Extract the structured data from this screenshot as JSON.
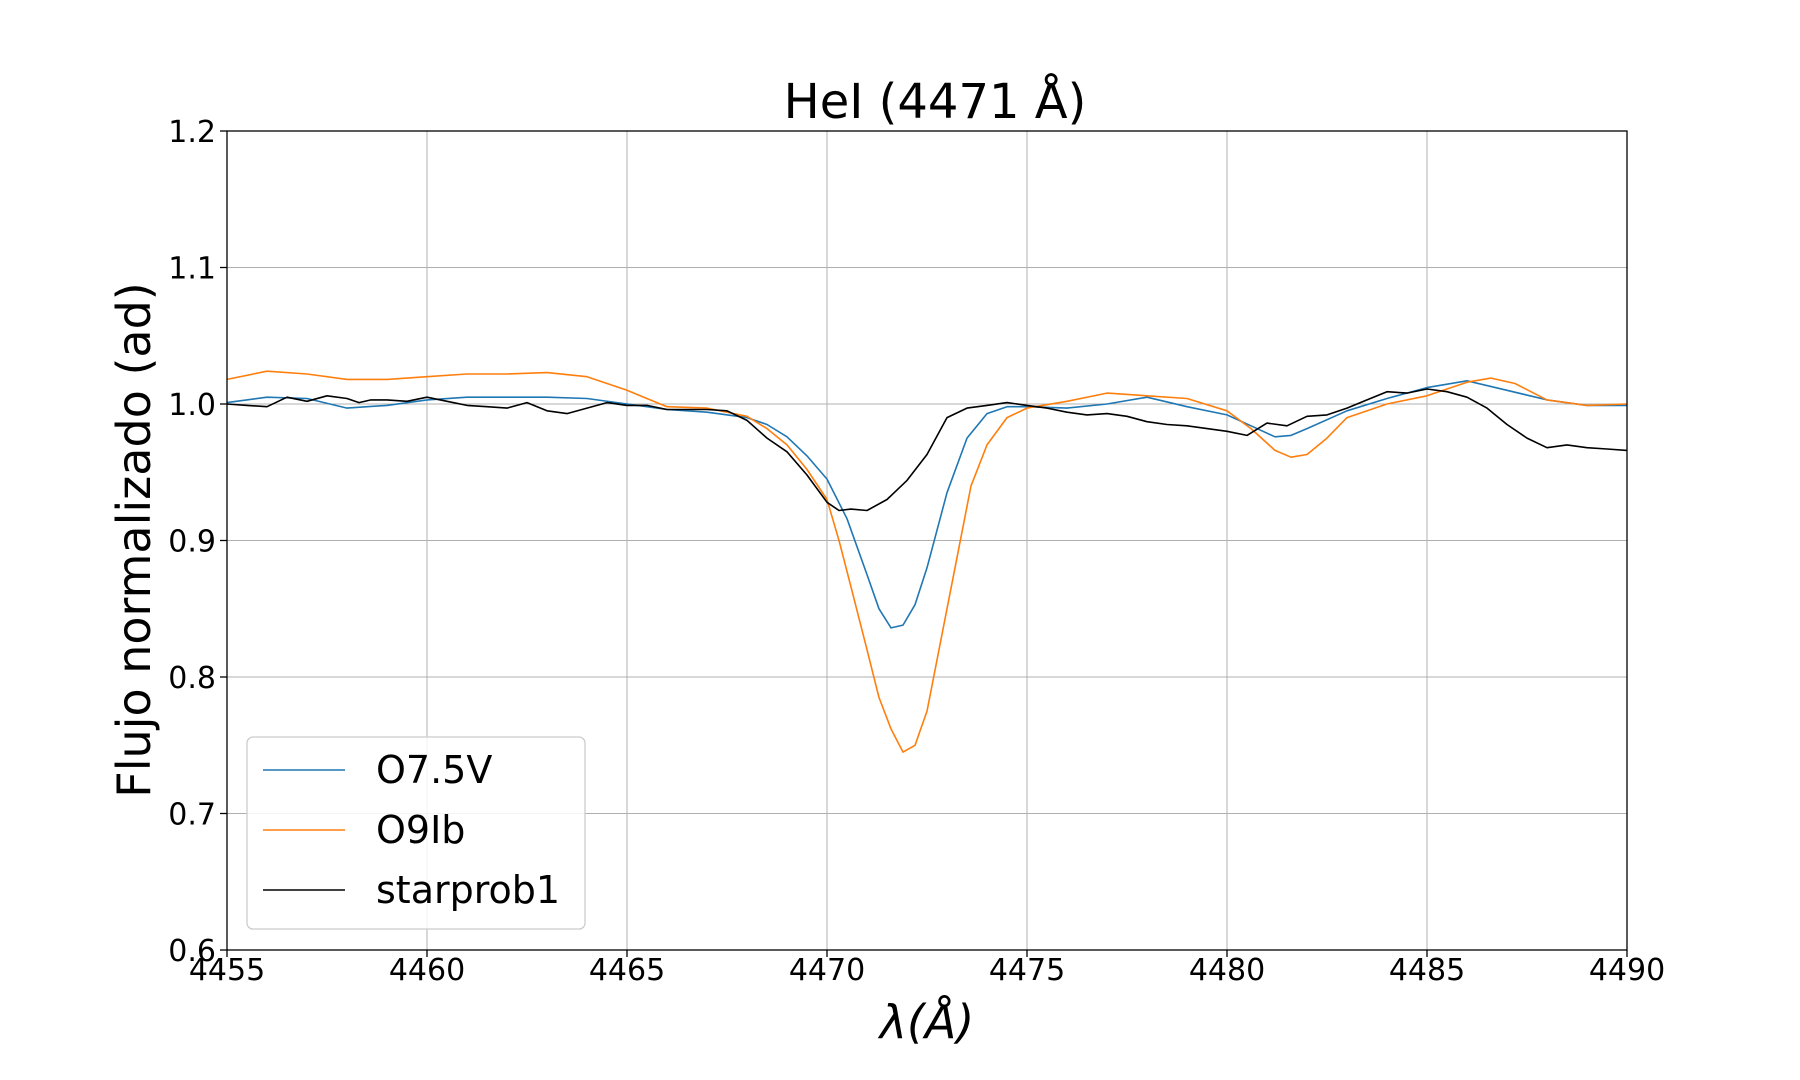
{
  "chart_data": {
    "type": "line",
    "title": "HeI (4471 Å)",
    "xlabel": "λ(Å)",
    "ylabel": "Flujo normalizado (ad)",
    "xlim": [
      4455,
      4490
    ],
    "ylim": [
      0.6,
      1.2
    ],
    "xticks": [
      4455,
      4460,
      4465,
      4470,
      4475,
      4480,
      4485,
      4490
    ],
    "xtick_labels": [
      "4455",
      "4460",
      "4465",
      "4470",
      "4475",
      "4480",
      "4485",
      "4490"
    ],
    "yticks": [
      0.6,
      0.7,
      0.8,
      0.9,
      1.0,
      1.1,
      1.2
    ],
    "ytick_labels": [
      "0.6",
      "0.7",
      "0.8",
      "0.9",
      "1.0",
      "1.1",
      "1.2"
    ],
    "grid": true,
    "legend_position": "lower-left",
    "series": [
      {
        "name": "O7.5V",
        "color": "#1f77b4",
        "points": [
          [
            4455,
            1.001
          ],
          [
            4456,
            1.005
          ],
          [
            4457,
            1.004
          ],
          [
            4458,
            0.997
          ],
          [
            4459,
            0.999
          ],
          [
            4460,
            1.003
          ],
          [
            4461,
            1.005
          ],
          [
            4462,
            1.005
          ],
          [
            4463,
            1.005
          ],
          [
            4464,
            1.004
          ],
          [
            4465,
            1.0
          ],
          [
            4466,
            0.996
          ],
          [
            4467,
            0.994
          ],
          [
            4468,
            0.99
          ],
          [
            4468.5,
            0.985
          ],
          [
            4469,
            0.976
          ],
          [
            4469.5,
            0.962
          ],
          [
            4470,
            0.945
          ],
          [
            4470.5,
            0.916
          ],
          [
            4471,
            0.875
          ],
          [
            4471.3,
            0.85
          ],
          [
            4471.6,
            0.836
          ],
          [
            4471.9,
            0.838
          ],
          [
            4472.2,
            0.853
          ],
          [
            4472.5,
            0.88
          ],
          [
            4473,
            0.935
          ],
          [
            4473.5,
            0.975
          ],
          [
            4474,
            0.993
          ],
          [
            4474.5,
            0.998
          ],
          [
            4475,
            0.998
          ],
          [
            4476,
            0.997
          ],
          [
            4477,
            1.0
          ],
          [
            4478,
            1.005
          ],
          [
            4479,
            0.998
          ],
          [
            4480,
            0.992
          ],
          [
            4480.6,
            0.984
          ],
          [
            4481.2,
            0.976
          ],
          [
            4481.6,
            0.977
          ],
          [
            4482,
            0.982
          ],
          [
            4483,
            0.995
          ],
          [
            4484,
            1.004
          ],
          [
            4485,
            1.012
          ],
          [
            4486,
            1.017
          ],
          [
            4487,
            1.01
          ],
          [
            4488,
            1.003
          ],
          [
            4489,
            0.999
          ],
          [
            4490,
            0.999
          ]
        ]
      },
      {
        "name": "O9Ib",
        "color": "#ff7f0e",
        "points": [
          [
            4455,
            1.018
          ],
          [
            4456,
            1.024
          ],
          [
            4457,
            1.022
          ],
          [
            4458,
            1.018
          ],
          [
            4459,
            1.018
          ],
          [
            4460,
            1.02
          ],
          [
            4461,
            1.022
          ],
          [
            4462,
            1.022
          ],
          [
            4463,
            1.023
          ],
          [
            4464,
            1.02
          ],
          [
            4465,
            1.01
          ],
          [
            4466,
            0.998
          ],
          [
            4467,
            0.997
          ],
          [
            4468,
            0.991
          ],
          [
            4468.5,
            0.982
          ],
          [
            4469,
            0.97
          ],
          [
            4469.5,
            0.952
          ],
          [
            4470,
            0.93
          ],
          [
            4470.3,
            0.9
          ],
          [
            4470.6,
            0.866
          ],
          [
            4471,
            0.82
          ],
          [
            4471.3,
            0.785
          ],
          [
            4471.6,
            0.762
          ],
          [
            4471.9,
            0.745
          ],
          [
            4472.2,
            0.75
          ],
          [
            4472.5,
            0.775
          ],
          [
            4472.8,
            0.82
          ],
          [
            4473.2,
            0.88
          ],
          [
            4473.6,
            0.94
          ],
          [
            4474,
            0.97
          ],
          [
            4474.5,
            0.99
          ],
          [
            4475,
            0.997
          ],
          [
            4476,
            1.002
          ],
          [
            4477,
            1.008
          ],
          [
            4478,
            1.006
          ],
          [
            4479,
            1.004
          ],
          [
            4480,
            0.995
          ],
          [
            4480.6,
            0.982
          ],
          [
            4481.2,
            0.966
          ],
          [
            4481.6,
            0.961
          ],
          [
            4482,
            0.963
          ],
          [
            4482.5,
            0.975
          ],
          [
            4483,
            0.99
          ],
          [
            4484,
            1.0
          ],
          [
            4485,
            1.006
          ],
          [
            4486,
            1.016
          ],
          [
            4486.6,
            1.019
          ],
          [
            4487.2,
            1.015
          ],
          [
            4488,
            1.003
          ],
          [
            4489,
            0.999
          ],
          [
            4490,
            1.0
          ]
        ]
      },
      {
        "name": "starprob1",
        "color": "#000000",
        "points": [
          [
            4455,
            1.0
          ],
          [
            4455.5,
            0.999
          ],
          [
            4456,
            0.998
          ],
          [
            4456.5,
            1.005
          ],
          [
            4457,
            1.002
          ],
          [
            4457.5,
            1.006
          ],
          [
            4458,
            1.004
          ],
          [
            4458.3,
            1.001
          ],
          [
            4458.6,
            1.003
          ],
          [
            4459,
            1.003
          ],
          [
            4459.5,
            1.002
          ],
          [
            4460,
            1.005
          ],
          [
            4460.5,
            1.002
          ],
          [
            4461,
            0.999
          ],
          [
            4461.5,
            0.998
          ],
          [
            4462,
            0.997
          ],
          [
            4462.5,
            1.001
          ],
          [
            4463,
            0.995
          ],
          [
            4463.5,
            0.993
          ],
          [
            4464,
            0.997
          ],
          [
            4464.5,
            1.001
          ],
          [
            4465,
            0.999
          ],
          [
            4465.5,
            0.999
          ],
          [
            4466,
            0.996
          ],
          [
            4466.5,
            0.996
          ],
          [
            4467,
            0.996
          ],
          [
            4467.5,
            0.995
          ],
          [
            4468,
            0.988
          ],
          [
            4468.5,
            0.975
          ],
          [
            4469,
            0.965
          ],
          [
            4469.5,
            0.948
          ],
          [
            4470,
            0.928
          ],
          [
            4470.3,
            0.922
          ],
          [
            4470.6,
            0.923
          ],
          [
            4471,
            0.922
          ],
          [
            4471.5,
            0.93
          ],
          [
            4472,
            0.944
          ],
          [
            4472.5,
            0.963
          ],
          [
            4473,
            0.99
          ],
          [
            4473.5,
            0.997
          ],
          [
            4474,
            0.999
          ],
          [
            4474.5,
            1.001
          ],
          [
            4475,
            0.999
          ],
          [
            4475.5,
            0.997
          ],
          [
            4476,
            0.994
          ],
          [
            4476.5,
            0.992
          ],
          [
            4477,
            0.993
          ],
          [
            4477.5,
            0.991
          ],
          [
            4478,
            0.987
          ],
          [
            4478.5,
            0.985
          ],
          [
            4479,
            0.984
          ],
          [
            4479.5,
            0.982
          ],
          [
            4480,
            0.98
          ],
          [
            4480.5,
            0.977
          ],
          [
            4481,
            0.986
          ],
          [
            4481.5,
            0.984
          ],
          [
            4482,
            0.991
          ],
          [
            4482.5,
            0.992
          ],
          [
            4483,
            0.997
          ],
          [
            4483.5,
            1.003
          ],
          [
            4484,
            1.009
          ],
          [
            4484.5,
            1.008
          ],
          [
            4485,
            1.011
          ],
          [
            4485.5,
            1.009
          ],
          [
            4486,
            1.005
          ],
          [
            4486.5,
            0.997
          ],
          [
            4487,
            0.985
          ],
          [
            4487.5,
            0.975
          ],
          [
            4488,
            0.968
          ],
          [
            4488.5,
            0.97
          ],
          [
            4489,
            0.968
          ],
          [
            4489.5,
            0.967
          ],
          [
            4490,
            0.966
          ]
        ]
      }
    ]
  }
}
